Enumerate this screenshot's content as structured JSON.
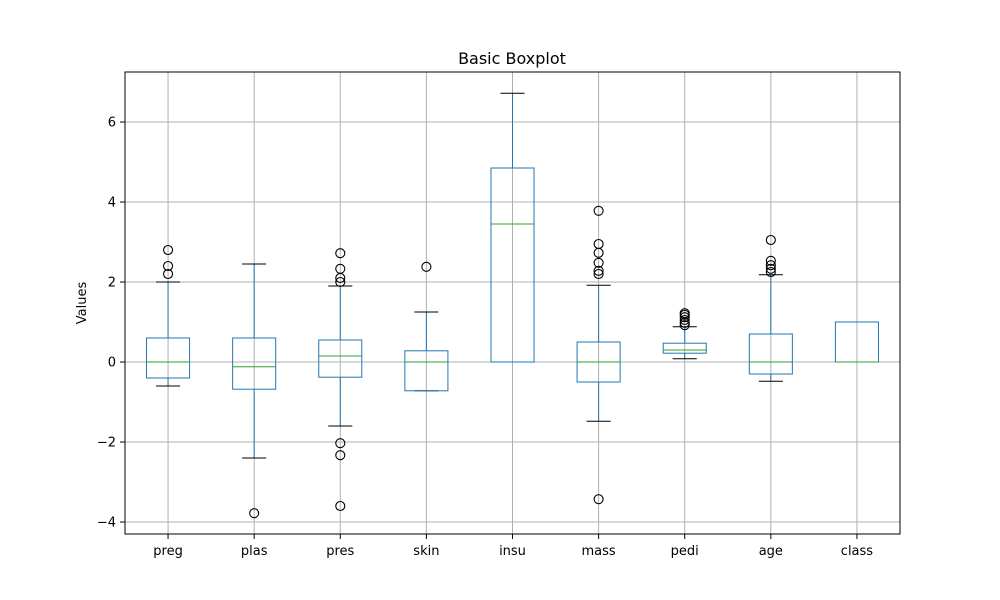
{
  "chart_data": {
    "type": "boxplot",
    "title": "Basic Boxplot",
    "xlabel": "",
    "ylabel": "Values",
    "ylim": [
      -4.3,
      7.25
    ],
    "yticks": [
      -4,
      -2,
      0,
      2,
      4,
      6
    ],
    "ytick_labels": [
      "−4",
      "−2",
      "0",
      "2",
      "4",
      "6"
    ],
    "grid": true,
    "colors": {
      "box": "#1f77b4",
      "median": "#2ca02c",
      "grid": "#b0b0b0",
      "whisker_cap": "#000000",
      "flier": "#000000"
    },
    "categories": [
      "preg",
      "plas",
      "pres",
      "skin",
      "insu",
      "mass",
      "pedi",
      "age",
      "class"
    ],
    "boxes": [
      {
        "label": "preg",
        "q1": -0.4,
        "median": 0.0,
        "q3": 0.6,
        "whislo": -0.6,
        "whishi": 2.0,
        "fliers": [
          2.2,
          2.4,
          2.8
        ]
      },
      {
        "label": "plas",
        "q1": -0.68,
        "median": -0.12,
        "q3": 0.6,
        "whislo": -2.4,
        "whishi": 2.45,
        "fliers": [
          -3.78
        ]
      },
      {
        "label": "pres",
        "q1": -0.38,
        "median": 0.15,
        "q3": 0.55,
        "whislo": -1.6,
        "whishi": 1.9,
        "fliers": [
          -3.6,
          -2.33,
          -2.03,
          2.0,
          2.1,
          2.33,
          2.72
        ]
      },
      {
        "label": "skin",
        "q1": -0.72,
        "median": 0.0,
        "q3": 0.28,
        "whislo": -0.72,
        "whishi": 1.25,
        "fliers": [
          2.38
        ]
      },
      {
        "label": "insu",
        "q1": 0.0,
        "median": 3.45,
        "q3": 4.85,
        "whislo": 0.0,
        "whishi": 6.72,
        "fliers": []
      },
      {
        "label": "mass",
        "q1": -0.5,
        "median": 0.0,
        "q3": 0.5,
        "whislo": -1.48,
        "whishi": 1.92,
        "fliers": [
          -3.43,
          2.2,
          2.28,
          2.48,
          2.73,
          2.95,
          3.78
        ]
      },
      {
        "label": "pedi",
        "q1": 0.22,
        "median": 0.3,
        "q3": 0.47,
        "whislo": 0.08,
        "whishi": 0.88,
        "fliers": [
          0.92,
          0.98,
          1.05,
          1.12,
          1.18,
          1.22
        ]
      },
      {
        "label": "age",
        "q1": -0.3,
        "median": 0.0,
        "q3": 0.7,
        "whislo": -0.48,
        "whishi": 2.18,
        "fliers": [
          2.25,
          2.33,
          2.42,
          2.53,
          3.05
        ]
      },
      {
        "label": "class",
        "q1": 0.0,
        "median": 0.0,
        "q3": 1.0,
        "whislo": 0.0,
        "whishi": 1.0,
        "fliers": []
      }
    ]
  }
}
